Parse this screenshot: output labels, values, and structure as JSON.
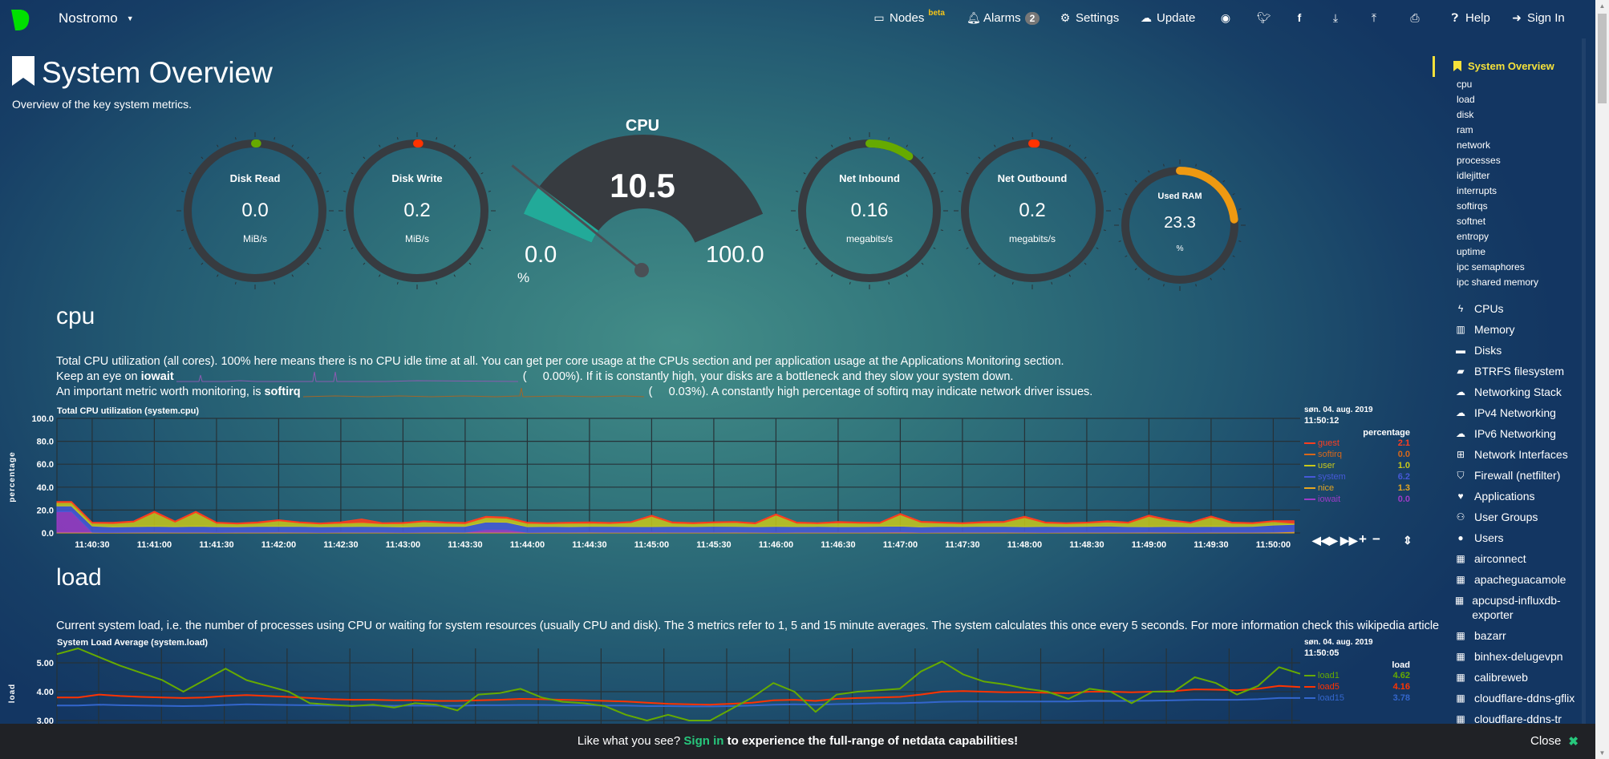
{
  "nav": {
    "brand": "Nostromo",
    "nodes": "Nodes",
    "beta": "beta",
    "alarms": "Alarms",
    "alarm_count": "2",
    "settings": "Settings",
    "update": "Update",
    "help": "Help",
    "signin": "Sign In"
  },
  "page": {
    "title": "System Overview",
    "subtitle": "Overview of the key system metrics."
  },
  "gauges": {
    "disk_read": {
      "title": "Disk Read",
      "value": "0.0",
      "units": "MiB/s",
      "fraction": 0.005,
      "color": "#66aa00"
    },
    "disk_write": {
      "title": "Disk Write",
      "value": "0.2",
      "units": "MiB/s",
      "fraction": 0.005,
      "color": "#ff3300"
    },
    "cpu": {
      "title": "CPU",
      "value": "10.5",
      "min": "0.0",
      "max": "100.0",
      "units": "%",
      "fraction": 0.105,
      "color": "#22aa99"
    },
    "net_in": {
      "title": "Net Inbound",
      "value": "0.16",
      "units": "megabits/s",
      "fraction": 0.1,
      "color": "#66aa00"
    },
    "net_out": {
      "title": "Net Outbound",
      "value": "0.2",
      "units": "megabits/s",
      "fraction": 0.008,
      "color": "#ff3300"
    },
    "ram": {
      "title": "Used RAM",
      "value": "23.3",
      "units": "%",
      "fraction": 0.233,
      "color": "#ee9911"
    }
  },
  "cpu_section": {
    "heading": "cpu",
    "line1": "Total CPU utilization (all cores). 100% here means there is no CPU idle time at all. You can get per core usage at the CPUs section and per application usage at the Applications Monitoring section.",
    "line2a": "Keep an eye on ",
    "line2b": "iowait",
    "line2c": "(",
    "line2d": "0.00%). If it is constantly high, your disks are a bottleneck and they slow your system down.",
    "line3a": "An important metric worth monitoring, is ",
    "line3b": "softirq",
    "line3c": "(",
    "line3d": "0.03%). A constantly high percentage of softirq may indicate network driver issues.",
    "date": "søn. 04. aug. 2019",
    "time": "11:50:12",
    "units": "percentage"
  },
  "load_section": {
    "heading": "load",
    "desc": "Current system load, i.e. the number of processes using CPU or waiting for system resources (usually CPU and disk). The 3 metrics refer to 1, 5 and 15 minute averages. The system calculates this once every 5 seconds. For more information check this wikipedia article",
    "date": "søn. 04. aug. 2019",
    "time": "11:50:05",
    "units": "load"
  },
  "controls": {
    "rewind": "◀◀",
    "play": "▶",
    "forward": "▶▶",
    "zoom_in": "+",
    "zoom_out": "−",
    "resize": "⇕"
  },
  "chart_data": [
    {
      "type": "area",
      "stacked": true,
      "title": "Total CPU utilization (system.cpu)",
      "ylabel": "percentage",
      "ylim": [
        0,
        100
      ],
      "yticks": [
        "0.0",
        "20.0",
        "40.0",
        "60.0",
        "80.0",
        "100.0"
      ],
      "xlim": [
        "11:40:13",
        "11:50:13"
      ],
      "xticks": [
        "11:40:30",
        "11:41:00",
        "11:41:30",
        "11:42:00",
        "11:42:30",
        "11:43:00",
        "11:43:30",
        "11:44:00",
        "11:44:30",
        "11:45:00",
        "11:45:30",
        "11:46:00",
        "11:46:30",
        "11:47:00",
        "11:47:30",
        "11:48:00",
        "11:48:30",
        "11:49:00",
        "11:49:30",
        "11:50:00"
      ],
      "x_start": "11:40:20",
      "x_step_seconds": 10,
      "grid": true,
      "legend": "right",
      "series": [
        {
          "name": "nice",
          "color": "#e5a520",
          "current": "1.3",
          "values": [
            0.6,
            0.6,
            0.5,
            0.6,
            0.7,
            0.6,
            0.6,
            0.5,
            0.6,
            0.6,
            0.7,
            0.6,
            0.5,
            0.6,
            0.6,
            0.6,
            0.5,
            0.6,
            0.7,
            0.6,
            0.6,
            0.6,
            0.5,
            0.6,
            0.6,
            0.7,
            0.6,
            0.6,
            0.5,
            0.6,
            0.6,
            0.6,
            0.7,
            0.6,
            0.5,
            0.6,
            0.6,
            0.6,
            0.6,
            0.7,
            0.6,
            0.5,
            0.6,
            0.6,
            0.6,
            0.7,
            0.6,
            0.5,
            0.6,
            0.6,
            0.6,
            0.6,
            0.7,
            0.6,
            0.5,
            0.6,
            0.6,
            0.6,
            0.7,
            1.3
          ]
        },
        {
          "name": "iowait",
          "color": "#9d3bc8",
          "current": "0.0",
          "values": [
            18,
            0,
            0,
            0,
            0,
            0,
            0,
            0,
            0,
            0,
            0,
            0,
            0,
            0,
            0,
            0,
            0,
            0,
            0,
            0,
            2.5,
            2.5,
            0,
            0,
            0,
            0,
            0,
            0,
            0.3,
            0,
            0,
            0,
            0,
            0,
            0,
            0,
            0,
            0,
            0,
            0,
            0.4,
            0,
            0,
            0,
            0,
            0,
            0,
            0,
            0,
            0,
            0,
            0,
            0,
            0,
            0,
            0,
            0,
            0,
            0,
            0
          ]
        },
        {
          "name": "system",
          "color": "#4659d8",
          "current": "6.2",
          "values": [
            5,
            5.5,
            4.8,
            5,
            5.2,
            4.9,
            5.3,
            5,
            4.8,
            5.1,
            5,
            5.2,
            4.9,
            5,
            5.1,
            5,
            4.8,
            5.2,
            5,
            5.1,
            6.5,
            6.3,
            5,
            5.1,
            4.9,
            5,
            5.2,
            5,
            4.8,
            5.1,
            5,
            5.3,
            5,
            4.9,
            5.2,
            5,
            5.1,
            4.9,
            5,
            5.2,
            5,
            4.8,
            5.1,
            5,
            5.3,
            5,
            4.9,
            5.2,
            5,
            5.1,
            5.5,
            5,
            4.8,
            5.1,
            5,
            5.2,
            5,
            5.1,
            6.2,
            6.2
          ]
        },
        {
          "name": "user",
          "color": "#c8c81a",
          "current": "1.0",
          "values": [
            3,
            2.5,
            3,
            4,
            12,
            4,
            12,
            3,
            2.5,
            3,
            5,
            3,
            2.5,
            3,
            3.5,
            2.5,
            3,
            4,
            3,
            2.5,
            4,
            3.5,
            3,
            2.5,
            3,
            3,
            2.5,
            3.5,
            9,
            3,
            2.5,
            3,
            3.5,
            2.5,
            10,
            3,
            2.5,
            3.5,
            3,
            2.5,
            10,
            4,
            3,
            2.5,
            3,
            3.5,
            8,
            3,
            2.5,
            3,
            3.5,
            3,
            9,
            5,
            3,
            8,
            3,
            2.5,
            3,
            1.0
          ]
        },
        {
          "name": "softirq",
          "color": "#d8681a",
          "current": "0.0",
          "values": [
            0.05,
            0.05,
            0.04,
            0.05,
            0.06,
            0.05,
            0.05,
            0.04,
            0.05,
            0.05,
            0.05,
            0.05,
            0.04,
            0.05,
            0.05,
            0.05,
            0.04,
            0.05,
            0.05,
            0.05,
            0.06,
            0.05,
            0.05,
            0.04,
            0.05,
            0.05,
            0.05,
            0.05,
            0.04,
            0.05,
            0.05,
            0.05,
            0.04,
            0.05,
            0.05,
            0.05,
            0.05,
            0.04,
            0.05,
            0.05,
            0.05,
            0.05,
            0.04,
            0.05,
            0.05,
            0.05,
            0.05,
            0.04,
            0.05,
            0.05,
            0.05,
            0.05,
            0.04,
            0.05,
            0.05,
            0.05,
            0.05,
            0.04,
            0.05,
            0.0
          ]
        },
        {
          "name": "guest",
          "color": "#ff3e1f",
          "current": "2.1",
          "values": [
            0.8,
            0.7,
            0.9,
            0.8,
            1,
            0.8,
            0.9,
            0.8,
            0.7,
            0.9,
            0.8,
            0.8,
            0.7,
            0.9,
            3,
            0.8,
            0.8,
            0.7,
            0.8,
            0.9,
            0.8,
            0.8,
            0.8,
            0.7,
            0.8,
            0.9,
            0.8,
            0.7,
            0.8,
            0.8,
            0.9,
            0.8,
            0.7,
            0.8,
            0.8,
            0.8,
            0.7,
            0.9,
            0.8,
            0.8,
            0.9,
            0.8,
            0.8,
            0.7,
            0.9,
            0.8,
            1,
            0.8,
            0.8,
            0.7,
            0.9,
            0.8,
            1,
            0.8,
            0.8,
            0.9,
            0.8,
            0.8,
            0.7,
            2.1
          ]
        }
      ],
      "legend_order": [
        "guest",
        "softirq",
        "user",
        "system",
        "nice",
        "iowait"
      ]
    },
    {
      "type": "line",
      "title": "System Load Average (system.load)",
      "ylabel": "load",
      "yticks": [
        "3.00",
        "4.00",
        "5.00"
      ],
      "ylim": [
        3,
        5.5
      ],
      "x_start": "11:40:15",
      "x_step_seconds": 10,
      "grid": true,
      "legend": "right",
      "series": [
        {
          "name": "load1",
          "color": "#66aa00",
          "current": "4.62",
          "values": [
            5.3,
            5.5,
            5.2,
            4.9,
            4.65,
            4.4,
            4.0,
            4.4,
            4.8,
            4.4,
            4.2,
            4.0,
            3.6,
            3.55,
            3.5,
            3.55,
            3.45,
            3.6,
            3.55,
            3.35,
            3.9,
            3.95,
            4.1,
            3.8,
            3.65,
            3.6,
            3.5,
            3.2,
            3.0,
            3.2,
            3.0,
            3.0,
            3.4,
            3.8,
            4.3,
            4.0,
            3.3,
            3.9,
            4.0,
            4.05,
            4.1,
            4.7,
            5.05,
            4.6,
            4.35,
            4.25,
            4.1,
            4.0,
            3.75,
            4.1,
            4.0,
            3.6,
            4.0,
            4.0,
            4.5,
            4.3,
            3.9,
            4.2,
            4.85,
            4.62
          ]
        },
        {
          "name": "load5",
          "color": "#ff3300",
          "current": "4.16",
          "values": [
            3.8,
            3.8,
            3.9,
            3.85,
            3.82,
            3.8,
            3.78,
            3.8,
            3.85,
            3.88,
            3.85,
            3.82,
            3.78,
            3.74,
            3.72,
            3.72,
            3.7,
            3.7,
            3.68,
            3.68,
            3.7,
            3.72,
            3.75,
            3.74,
            3.72,
            3.7,
            3.68,
            3.66,
            3.62,
            3.58,
            3.56,
            3.55,
            3.58,
            3.62,
            3.7,
            3.72,
            3.68,
            3.75,
            3.78,
            3.8,
            3.82,
            3.9,
            4.0,
            4.02,
            4.0,
            3.98,
            3.98,
            3.96,
            3.95,
            4.0,
            4.0,
            3.98,
            4.0,
            4.02,
            4.08,
            4.07,
            4.05,
            4.1,
            4.2,
            4.16
          ]
        },
        {
          "name": "load15",
          "color": "#3366cc",
          "current": "3.78",
          "values": [
            3.52,
            3.52,
            3.55,
            3.53,
            3.52,
            3.51,
            3.5,
            3.51,
            3.54,
            3.56,
            3.55,
            3.54,
            3.53,
            3.52,
            3.52,
            3.52,
            3.51,
            3.52,
            3.51,
            3.51,
            3.53,
            3.53,
            3.54,
            3.54,
            3.53,
            3.53,
            3.52,
            3.52,
            3.5,
            3.5,
            3.49,
            3.49,
            3.5,
            3.52,
            3.55,
            3.56,
            3.55,
            3.57,
            3.58,
            3.6,
            3.6,
            3.62,
            3.65,
            3.66,
            3.66,
            3.66,
            3.66,
            3.66,
            3.66,
            3.68,
            3.68,
            3.68,
            3.69,
            3.7,
            3.72,
            3.72,
            3.72,
            3.74,
            3.78,
            3.78
          ]
        }
      ]
    }
  ],
  "sidebar": {
    "active": "System Overview",
    "subitems": [
      "cpu",
      "load",
      "disk",
      "ram",
      "network",
      "processes",
      "idlejitter",
      "interrupts",
      "softirqs",
      "softnet",
      "entropy",
      "uptime",
      "ipc semaphores",
      "ipc shared memory"
    ],
    "items": [
      {
        "label": "CPUs",
        "icon": "bolt-icon",
        "glyph": "ϟ"
      },
      {
        "label": "Memory",
        "icon": "memory-icon",
        "glyph": "▥"
      },
      {
        "label": "Disks",
        "icon": "hdd-icon",
        "glyph": "▬"
      },
      {
        "label": "BTRFS filesystem",
        "icon": "folder-icon",
        "glyph": "▰"
      },
      {
        "label": "Networking Stack",
        "icon": "cloud-icon",
        "glyph": "☁"
      },
      {
        "label": "IPv4 Networking",
        "icon": "cloud-icon",
        "glyph": "☁"
      },
      {
        "label": "IPv6 Networking",
        "icon": "cloud-icon",
        "glyph": "☁"
      },
      {
        "label": "Network Interfaces",
        "icon": "sitemap-icon",
        "glyph": "⊞"
      },
      {
        "label": "Firewall (netfilter)",
        "icon": "shield-icon",
        "glyph": "⛉"
      },
      {
        "label": "Applications",
        "icon": "heartbeat-icon",
        "glyph": "♥"
      },
      {
        "label": "User Groups",
        "icon": "users-icon",
        "glyph": "⚇"
      },
      {
        "label": "Users",
        "icon": "user-icon",
        "glyph": "●"
      },
      {
        "label": "airconnect",
        "icon": "grid-icon",
        "glyph": "▦"
      },
      {
        "label": "apacheguacamole",
        "icon": "grid-icon",
        "glyph": "▦"
      },
      {
        "label": "apcupsd-influxdb-exporter",
        "icon": "grid-icon",
        "glyph": "▦"
      },
      {
        "label": "bazarr",
        "icon": "grid-icon",
        "glyph": "▦"
      },
      {
        "label": "binhex-delugevpn",
        "icon": "grid-icon",
        "glyph": "▦"
      },
      {
        "label": "calibreweb",
        "icon": "grid-icon",
        "glyph": "▦"
      },
      {
        "label": "cloudflare-ddns-gflix",
        "icon": "grid-icon",
        "glyph": "▦"
      },
      {
        "label": "cloudflare-ddns-tr",
        "icon": "grid-icon",
        "glyph": "▦"
      }
    ]
  },
  "banner": {
    "pre": "Like what you see? ",
    "link": "Sign in",
    "post": " to experience the full-range of netdata capabilities!",
    "close": "Close",
    "close_icon": "✖"
  },
  "colors": {
    "accent": "#f5e13a",
    "link": "#27c77c",
    "track": "#373b40"
  }
}
